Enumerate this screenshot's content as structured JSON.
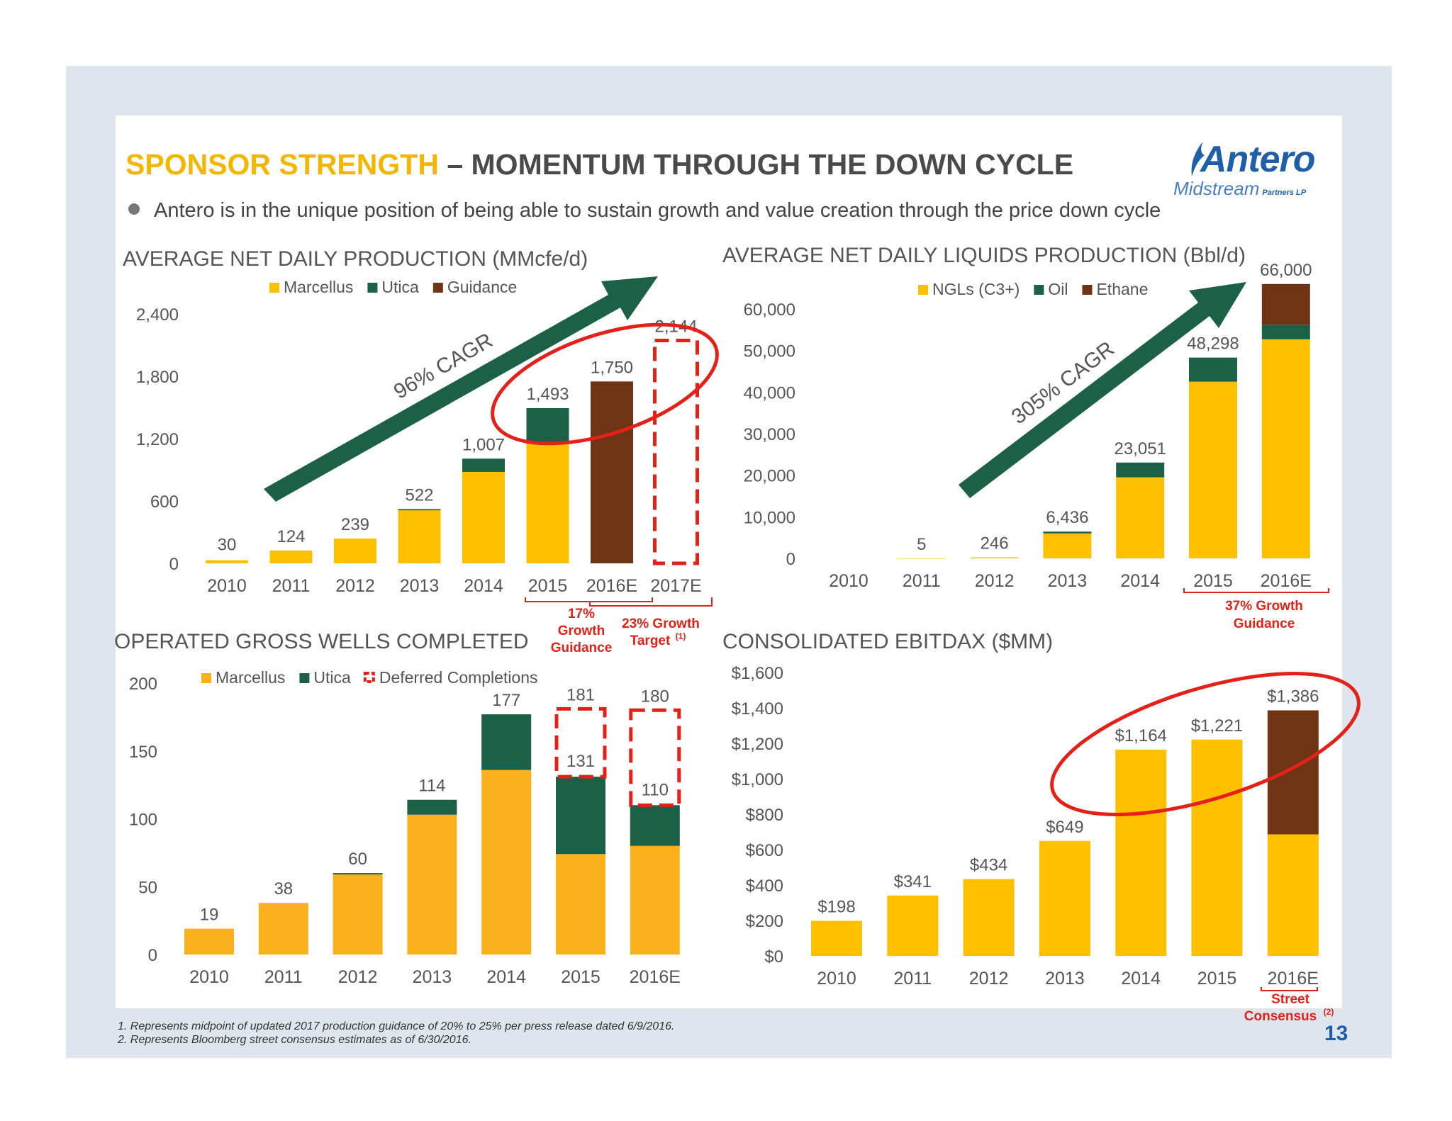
{
  "header": {
    "title_highlight": "SPONSOR STRENGTH",
    "title_rest": " – MOMENTUM THROUGH THE DOWN CYCLE",
    "bullet": "Antero is in the unique position of being able to sustain growth and value creation through the price down cycle"
  },
  "logo": {
    "word": "Antero",
    "sub": "Midstream",
    "lp": "Partners LP"
  },
  "colors": {
    "yellow": "#ffc000",
    "yellow_wells": "#fbb11c",
    "green": "#1b6047",
    "brown": "#6f3413",
    "red": "#e32119",
    "arrow": "#1b6047"
  },
  "chart_data": [
    {
      "id": "production",
      "type": "bar",
      "title": "AVERAGE NET DAILY PRODUCTION (MMcfe/d)",
      "categories": [
        "2010",
        "2011",
        "2012",
        "2013",
        "2014",
        "2015",
        "2016E",
        "2017E"
      ],
      "series": [
        {
          "name": "Marcellus",
          "values": [
            30,
            124,
            239,
            510,
            880,
            1150,
            0,
            0
          ]
        },
        {
          "name": "Utica",
          "values": [
            0,
            0,
            0,
            12,
            127,
            343,
            0,
            0
          ]
        },
        {
          "name": "Guidance",
          "values": [
            0,
            0,
            0,
            0,
            0,
            0,
            1750,
            0
          ]
        }
      ],
      "totals": [
        "30",
        "124",
        "239",
        "522",
        "1,007",
        "1,493",
        "1,750",
        "2,144"
      ],
      "dashed_outline": {
        "category": "2017E",
        "value": 2144
      },
      "ylim": [
        0,
        2400
      ],
      "yticks": [
        "0",
        "600",
        "1,200",
        "1,800",
        "2,400"
      ],
      "ytick_values": [
        0,
        600,
        1200,
        1800,
        2400
      ],
      "cagr_label": "96% CAGR",
      "annotations": [
        "17% Growth Guidance",
        "23% Growth Target(1)"
      ]
    },
    {
      "id": "liquids",
      "type": "bar",
      "title": "AVERAGE NET DAILY LIQUIDS PRODUCTION (Bbl/d)",
      "categories": [
        "2010",
        "2011",
        "2012",
        "2013",
        "2014",
        "2015",
        "2016E"
      ],
      "series": [
        {
          "name": "NGLs (C3+)",
          "values": [
            0,
            5,
            246,
            6000,
            19500,
            42500,
            52700
          ]
        },
        {
          "name": "Oil",
          "values": [
            0,
            0,
            0,
            436,
            3551,
            5798,
            3500
          ]
        },
        {
          "name": "Ethane",
          "values": [
            0,
            0,
            0,
            0,
            0,
            0,
            9800
          ]
        }
      ],
      "totals": [
        "",
        "5",
        "246",
        "6,436",
        "23,051",
        "48,298",
        "66,000"
      ],
      "ylim": [
        0,
        60000
      ],
      "yticks": [
        "0",
        "10,000",
        "20,000",
        "30,000",
        "40,000",
        "50,000",
        "60,000"
      ],
      "ytick_values": [
        0,
        10000,
        20000,
        30000,
        40000,
        50000,
        60000
      ],
      "cagr_label": "305% CAGR",
      "annotations": [
        "37% Growth Guidance"
      ]
    },
    {
      "id": "wells",
      "type": "bar",
      "title": "OPERATED GROSS WELLS COMPLETED",
      "categories": [
        "2010",
        "2011",
        "2012",
        "2013",
        "2014",
        "2015",
        "2016E"
      ],
      "series": [
        {
          "name": "Marcellus",
          "values": [
            19,
            38,
            59,
            103,
            136,
            74,
            80
          ]
        },
        {
          "name": "Utica",
          "values": [
            0,
            0,
            1,
            11,
            41,
            57,
            30
          ]
        },
        {
          "name": "Deferred Completions",
          "values": [
            0,
            0,
            0,
            0,
            0,
            50,
            70
          ]
        }
      ],
      "totals": [
        "19",
        "38",
        "60",
        "114",
        "177",
        "131",
        "110"
      ],
      "outline_totals": [
        "",
        "",
        "",
        "",
        "",
        "181",
        "180"
      ],
      "ylim": [
        0,
        200
      ],
      "yticks": [
        "0",
        "50",
        "100",
        "150",
        "200"
      ],
      "ytick_values": [
        0,
        50,
        100,
        150,
        200
      ]
    },
    {
      "id": "ebitdax",
      "type": "bar",
      "title": "CONSOLIDATED EBITDAX ($MM)",
      "categories": [
        "2010",
        "2011",
        "2012",
        "2013",
        "2014",
        "2015",
        "2016E"
      ],
      "series": [
        {
          "name": "",
          "values": [
            198,
            341,
            434,
            649,
            1164,
            1221,
            686
          ]
        },
        {
          "name": "",
          "values": [
            0,
            0,
            0,
            0,
            0,
            0,
            700
          ]
        }
      ],
      "totals": [
        "$198",
        "$341",
        "$434",
        "$649",
        "$1,164",
        "$1,221",
        "$1,386"
      ],
      "ylim": [
        0,
        1600
      ],
      "yticks": [
        "$0",
        "$200",
        "$400",
        "$600",
        "$800",
        "$1,000",
        "$1,200",
        "$1,400",
        "$1,600"
      ],
      "ytick_values": [
        0,
        200,
        400,
        600,
        800,
        1000,
        1200,
        1400,
        1600
      ],
      "annotations": [
        "Street Consensus(2)"
      ]
    }
  ],
  "annot": {
    "g17_a": "17%",
    "g17_b": "Growth",
    "g17_c": "Guidance",
    "g23_a": "23% Growth",
    "g23_b": "Target",
    "g23_sup": "(1)",
    "g37_a": "37% Growth",
    "g37_b": "Guidance",
    "street_a": "Street",
    "street_b": "Consensus",
    "street_sup": "(2)"
  },
  "footnotes": [
    "1.  Represents midpoint of updated 2017 production guidance of 20% to 25% per press release dated 6/9/2016.",
    "2.  Represents Bloomberg street consensus estimates as of 6/30/2016."
  ],
  "page_number": "13"
}
